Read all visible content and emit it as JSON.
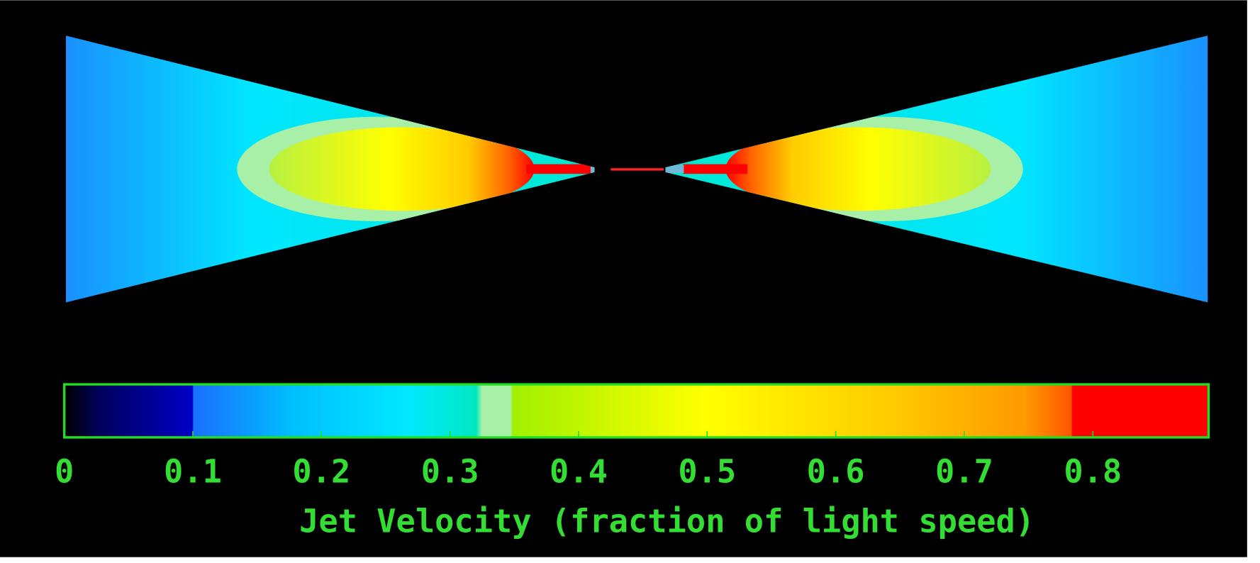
{
  "colorbar": {
    "label": "Jet Velocity (fraction of light speed)",
    "range": [
      0,
      0.89
    ],
    "ticks": [
      0,
      0.1,
      0.2,
      0.3,
      0.4,
      0.5,
      0.6,
      0.7,
      0.8
    ]
  }
}
